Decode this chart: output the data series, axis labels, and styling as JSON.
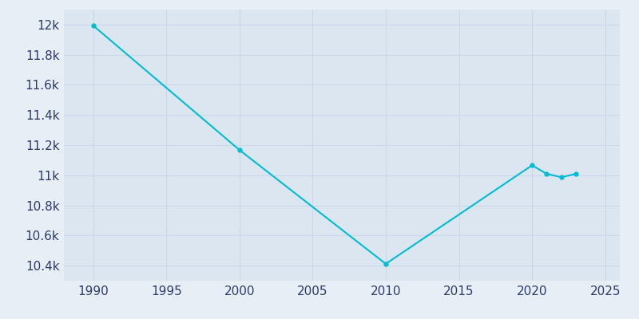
{
  "years": [
    1990,
    2000,
    2010,
    2020,
    2021,
    2022,
    2023
  ],
  "population": [
    11994,
    11168,
    10412,
    11066,
    11010,
    10987,
    11009
  ],
  "line_color": "#00BCD4",
  "outer_bg_color": "#e8eef5",
  "plot_bg_color": "#dce6f0",
  "tick_color": "#2b3a6b",
  "grid_color": "#c8d8ea",
  "xlim": [
    1988,
    2026
  ],
  "ylim": [
    10300,
    12100
  ],
  "ytick_values": [
    10400,
    10600,
    10800,
    11000,
    11200,
    11400,
    11600,
    11800,
    12000
  ],
  "xtick_values": [
    1990,
    1995,
    2000,
    2005,
    2010,
    2015,
    2020,
    2025
  ],
  "linewidth": 1.5,
  "markersize": 3.5,
  "tick_fontsize": 11
}
